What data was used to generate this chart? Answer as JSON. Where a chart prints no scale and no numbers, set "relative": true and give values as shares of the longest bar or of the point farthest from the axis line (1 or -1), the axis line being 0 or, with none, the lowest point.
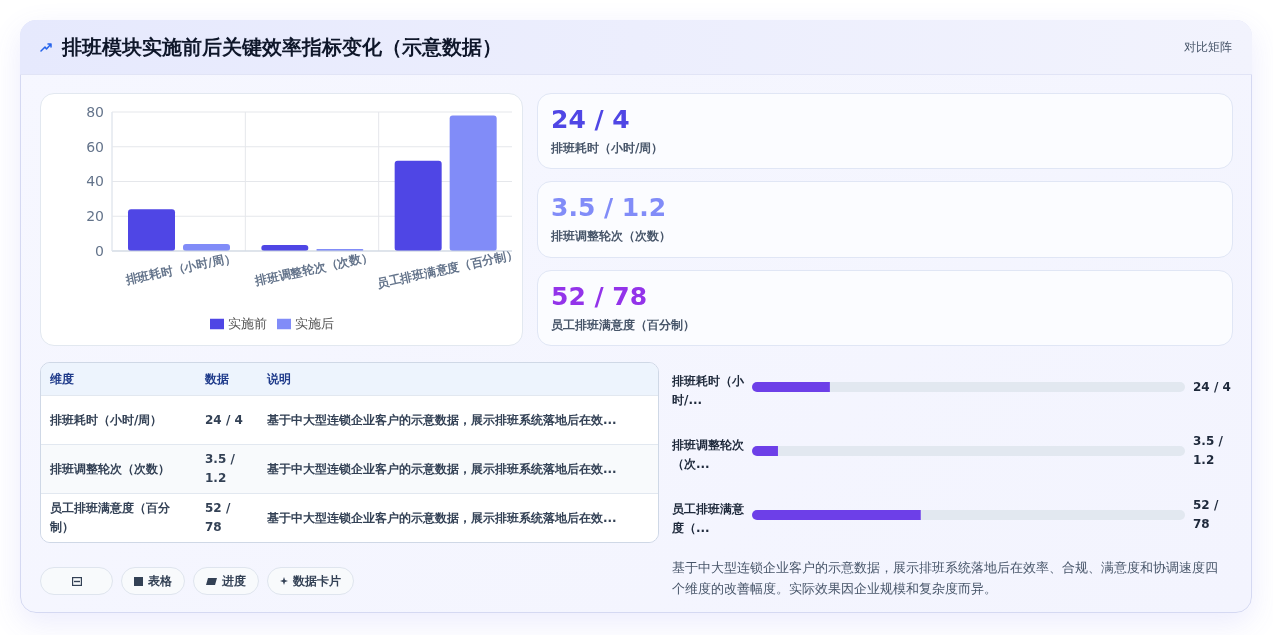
{
  "chart_data": [
    {
      "type": "other",
      "title": "排班模块实施前后关键效率指标变化（示意数据）",
      "annotations": [
        "对比矩阵"
      ]
    },
    {
      "type": "bar",
      "categories": [
        "排班耗时（小时/周）",
        "排班调整轮次（次数）",
        "员工排班满意度（百分制）"
      ],
      "series": [
        {
          "name": "实施前",
          "color": "#4f46e5",
          "values": [
            24,
            3.5,
            52
          ]
        },
        {
          "name": "实施后",
          "color": "#818cf8",
          "values": [
            4,
            1.2,
            78
          ]
        }
      ],
      "ylim": [
        0,
        80
      ],
      "yticks": [
        0,
        20,
        40,
        60,
        80
      ],
      "grid": true,
      "legend": "bottom"
    },
    {
      "type": "other",
      "annotations": [
        "24 / 4",
        "排班耗时（小时/周）",
        "3.5 / 1.2",
        "排班调整轮次（次数）",
        "52 / 78",
        "员工排班满意度（百分制）"
      ],
      "colors": [
        "#4f46e5",
        "#818cf8",
        "#9333ea"
      ]
    },
    {
      "type": "other",
      "annotations": [
        "维度",
        "数据",
        "说明",
        "排班耗时（小时/周）",
        "24 / 4",
        "基于中大型连锁企业客户的示意数据，展示排班系统落地后在效...",
        "排班调整轮次（次数）",
        "3.5 / 1.2",
        "基于中大型连锁企业客户的示意数据，展示排班系统落地后在效...",
        "员工排班满意度（百分制）",
        "52 / 78",
        "基于中大型连锁企业客户的示意数据，展示排班系统落地后在效..."
      ]
    },
    {
      "type": "bar",
      "orientation": "horizontal",
      "stacked": true,
      "relative": true,
      "categories": [
        "排班耗时（小时/...",
        "排班调整轮次（次...",
        "员工排班满意度（..."
      ],
      "series": [
        {
          "color": "#6d3fe8",
          "values": [
            0.18,
            0.06,
            0.39
          ]
        },
        {
          "color": "#e2e8f0",
          "values": [
            0.82,
            0.94,
            0.61
          ]
        }
      ],
      "annotations": [
        "24 / 4",
        "3.5 / 1.2",
        "52 / 78",
        "基于中大型连锁企业客户的示意数据，展示排班系统落地后在效率、合规、满意度和协调速度四个维度的改善幅度。实际效果因企业规模和复杂度而异。"
      ]
    },
    {
      "type": "other",
      "annotations": [
        "表格",
        "进度",
        "数据卡片"
      ]
    }
  ]
}
